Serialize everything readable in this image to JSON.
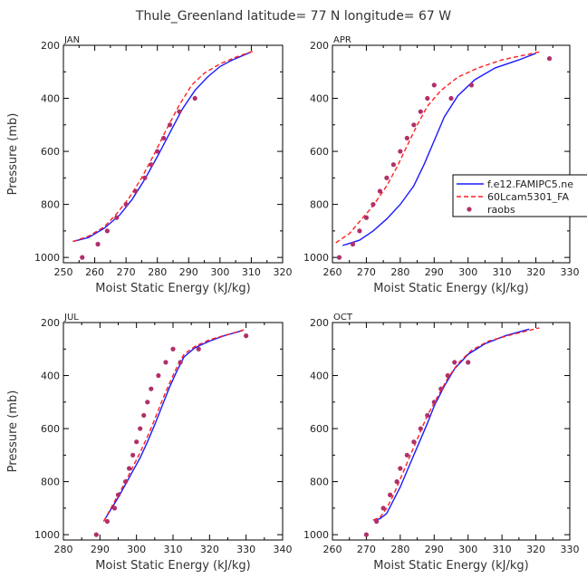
{
  "page_title": "Thule_Greenland  latitude= 77 N longitude= 67 W",
  "colors": {
    "model1": "#1a1aff",
    "model2": "#ff2020",
    "raobs": "#b0306a",
    "frame": "#000000"
  },
  "legend": {
    "items": [
      {
        "label": "f.e12.FAMIPC5.ne",
        "style": "solid"
      },
      {
        "label": "60Lcam5301_FA",
        "style": "dashed"
      },
      {
        "label": "raobs",
        "style": "dot"
      }
    ]
  },
  "chart_data": [
    {
      "type": "line",
      "title": "JAN",
      "xlabel": "Moist Static Energy (kJ/kg)",
      "ylabel": "Pressure (mb)",
      "xlim": [
        250,
        320
      ],
      "ylim": [
        1020,
        200
      ],
      "xticks": [
        250,
        260,
        270,
        280,
        290,
        300,
        310,
        320
      ],
      "yticks": [
        200,
        400,
        600,
        800,
        1000
      ],
      "series": [
        {
          "name": "f.e12.FAMIPC5.ne",
          "style": "solid",
          "x": [
            253,
            258,
            263,
            268,
            272,
            276,
            280,
            284,
            288,
            292,
            296,
            300,
            304,
            310
          ],
          "y": [
            940,
            925,
            890,
            840,
            780,
            705,
            620,
            530,
            440,
            370,
            320,
            280,
            255,
            225
          ]
        },
        {
          "name": "60Lcam5301_FA",
          "style": "dashed",
          "x": [
            253,
            258,
            263,
            267,
            271,
            275,
            279,
            283,
            287,
            291,
            295,
            300,
            305,
            311
          ],
          "y": [
            940,
            920,
            885,
            835,
            775,
            700,
            610,
            515,
            425,
            350,
            305,
            270,
            245,
            220
          ]
        },
        {
          "name": "raobs",
          "style": "dot",
          "x": [
            256,
            261,
            264,
            267,
            270,
            273,
            276,
            278,
            280,
            282,
            284,
            287,
            292
          ],
          "y": [
            1000,
            950,
            900,
            850,
            800,
            750,
            700,
            650,
            600,
            550,
            500,
            450,
            400
          ]
        }
      ]
    },
    {
      "type": "line",
      "title": "APR",
      "xlabel": "Moist Static Energy (kJ/kg)",
      "ylabel": "",
      "xlim": [
        260,
        330
      ],
      "ylim": [
        1020,
        200
      ],
      "xticks": [
        260,
        270,
        280,
        290,
        300,
        310,
        320,
        330
      ],
      "yticks": [
        200,
        400,
        600,
        800,
        1000
      ],
      "series": [
        {
          "name": "f.e12.FAMIPC5.ne",
          "style": "solid",
          "x": [
            263,
            268,
            272,
            276,
            280,
            284,
            287,
            290,
            293,
            297,
            302,
            308,
            315,
            320
          ],
          "y": [
            955,
            935,
            900,
            855,
            800,
            730,
            650,
            560,
            470,
            390,
            330,
            285,
            255,
            230
          ]
        },
        {
          "name": "60Lcam5301_FA",
          "style": "dashed",
          "x": [
            261,
            265,
            268,
            272,
            276,
            279,
            282,
            285,
            288,
            292,
            297,
            303,
            310,
            321
          ],
          "y": [
            945,
            910,
            865,
            805,
            730,
            660,
            580,
            500,
            430,
            370,
            320,
            285,
            255,
            225
          ]
        },
        {
          "name": "raobs",
          "style": "dot",
          "x": [
            262,
            266,
            268,
            270,
            272,
            274,
            276,
            278,
            280,
            282,
            284,
            286,
            288,
            290,
            295,
            301,
            324
          ],
          "y": [
            1000,
            950,
            900,
            850,
            800,
            750,
            700,
            650,
            600,
            550,
            500,
            450,
            400,
            350,
            400,
            350,
            250
          ]
        }
      ]
    },
    {
      "type": "line",
      "title": "JUL",
      "xlabel": "Moist Static Energy (kJ/kg)",
      "ylabel": "Pressure (mb)",
      "xlim": [
        280,
        340
      ],
      "ylim": [
        1020,
        200
      ],
      "xticks": [
        280,
        290,
        300,
        310,
        320,
        330,
        340
      ],
      "yticks": [
        200,
        400,
        600,
        800,
        1000
      ],
      "series": [
        {
          "name": "f.e12.FAMIPC5.ne",
          "style": "solid",
          "x": [
            291,
            293,
            295,
            297,
            299,
            301,
            303,
            305,
            307,
            309,
            311,
            313,
            316,
            320,
            324,
            329
          ],
          "y": [
            950,
            905,
            860,
            810,
            760,
            710,
            650,
            585,
            515,
            445,
            385,
            330,
            295,
            270,
            250,
            230
          ]
        },
        {
          "name": "60Lcam5301_FA",
          "style": "dashed",
          "x": [
            291,
            293,
            295,
            297,
            299,
            301,
            303,
            305,
            307,
            309,
            311,
            313,
            316,
            320,
            325,
            330
          ],
          "y": [
            950,
            900,
            850,
            800,
            745,
            690,
            630,
            565,
            495,
            430,
            370,
            320,
            290,
            265,
            245,
            225
          ]
        },
        {
          "name": "raobs",
          "style": "dot",
          "x": [
            289,
            292,
            294,
            295,
            297,
            298,
            299,
            300,
            301,
            302,
            303,
            304,
            306,
            308,
            310,
            312,
            317,
            330
          ],
          "y": [
            1000,
            950,
            900,
            850,
            800,
            750,
            700,
            650,
            600,
            550,
            500,
            450,
            400,
            350,
            300,
            350,
            300,
            250
          ]
        }
      ]
    },
    {
      "type": "line",
      "title": "OCT",
      "xlabel": "Moist Static Energy (kJ/kg)",
      "ylabel": "",
      "xlim": [
        260,
        330
      ],
      "ylim": [
        1020,
        200
      ],
      "xticks": [
        260,
        270,
        280,
        290,
        300,
        310,
        320,
        330
      ],
      "yticks": [
        200,
        400,
        600,
        800,
        1000
      ],
      "series": [
        {
          "name": "f.e12.FAMIPC5.ne",
          "style": "solid",
          "x": [
            272,
            274,
            276,
            278,
            280,
            282,
            284,
            286,
            288,
            290,
            293,
            296,
            300,
            305,
            311,
            318
          ],
          "y": [
            945,
            940,
            920,
            870,
            820,
            760,
            700,
            640,
            580,
            515,
            440,
            375,
            320,
            280,
            250,
            225
          ]
        },
        {
          "name": "60Lcam5301_FA",
          "style": "dashed",
          "x": [
            272,
            274,
            276,
            278,
            280,
            282,
            284,
            286,
            288,
            291,
            294,
            297,
            301,
            306,
            313,
            321
          ],
          "y": [
            945,
            935,
            900,
            850,
            790,
            730,
            670,
            610,
            550,
            480,
            410,
            355,
            305,
            270,
            245,
            220
          ]
        },
        {
          "name": "raobs",
          "style": "dot",
          "x": [
            270,
            273,
            275,
            277,
            279,
            280,
            282,
            284,
            286,
            288,
            290,
            292,
            294,
            296,
            300
          ],
          "y": [
            1000,
            950,
            900,
            850,
            800,
            750,
            700,
            650,
            600,
            550,
            500,
            450,
            400,
            350,
            350
          ]
        }
      ]
    }
  ]
}
